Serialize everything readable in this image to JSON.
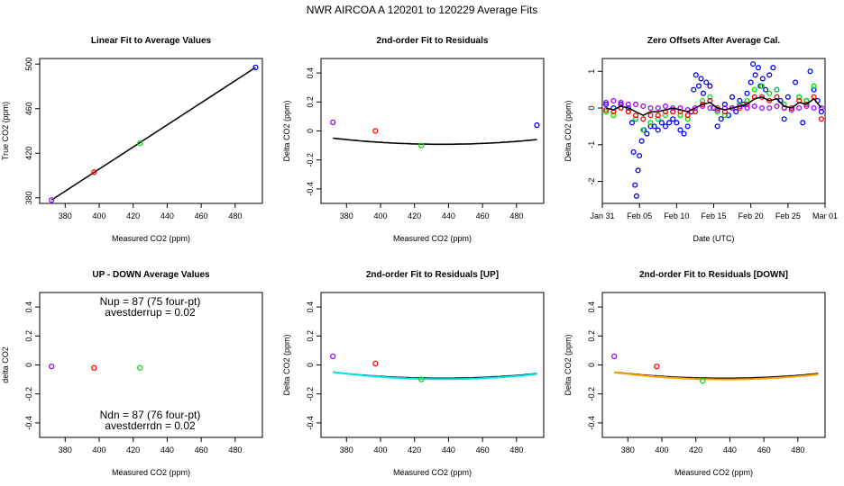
{
  "figure": {
    "title": "NWR   AIRCOA A   120201 to 120229   Average Fits",
    "colors": {
      "blue": "#0000ff",
      "red": "#ff0000",
      "green": "#00e000",
      "purple": "#a000ff",
      "black": "#000000",
      "cyan": "#00e5e5",
      "orange": "#ffa500"
    }
  },
  "chart_data": [
    {
      "id": "linear",
      "type": "scatter",
      "title": "Linear Fit to Average Values",
      "xlabel": "Measured CO2 (ppm)",
      "ylabel": "True CO2 (ppm)",
      "xlim": [
        365,
        496
      ],
      "ylim": [
        375,
        505
      ],
      "xticks": [
        380,
        400,
        420,
        440,
        460,
        480
      ],
      "yticks": [
        380,
        420,
        460,
        500
      ],
      "points": [
        {
          "x": 372,
          "y": 378,
          "color": "purple"
        },
        {
          "x": 397,
          "y": 403,
          "color": "red"
        },
        {
          "x": 424,
          "y": 429,
          "color": "green"
        },
        {
          "x": 492,
          "y": 497,
          "color": "blue"
        }
      ],
      "line": {
        "x": [
          372,
          492
        ],
        "y": [
          378,
          497
        ],
        "color": "black"
      }
    },
    {
      "id": "resid",
      "type": "scatter",
      "title": "2nd-order Fit to Residuals",
      "xlabel": "Measured CO2 (ppm)",
      "ylabel": "Delta CO2 (ppm)",
      "xlim": [
        365,
        496
      ],
      "ylim": [
        -0.5,
        0.5
      ],
      "xticks": [
        380,
        400,
        420,
        440,
        460,
        480
      ],
      "yticks": [
        -0.4,
        -0.2,
        0.0,
        0.2,
        0.4
      ],
      "points": [
        {
          "x": 372,
          "y": 0.06,
          "color": "purple"
        },
        {
          "x": 397,
          "y": 0.0,
          "color": "red"
        },
        {
          "x": 424,
          "y": -0.1,
          "color": "green"
        },
        {
          "x": 492,
          "y": 0.04,
          "color": "blue"
        }
      ],
      "curves": [
        {
          "color": "black",
          "a": 1.04e-05,
          "x0": 436,
          "c": -0.092,
          "from": 372,
          "to": 492
        }
      ]
    },
    {
      "id": "zero",
      "type": "scatter",
      "title": "Zero Offsets After Average Cal.",
      "xlabel": "Date (UTC)",
      "ylabel": "Delta CO2 (ppm)",
      "xlim": [
        0,
        30
      ],
      "ylim": [
        -2.6,
        1.35
      ],
      "xticks_values": [
        0,
        5,
        10,
        15,
        20,
        25,
        30
      ],
      "xticks": [
        "Jan 31",
        "Feb 05",
        "Feb 10",
        "Feb 15",
        "Feb 20",
        "Feb 25",
        "Mar 01"
      ],
      "yticks": [
        -2,
        -1,
        0,
        1
      ],
      "series": [
        {
          "name": "blue",
          "color": "blue",
          "x": [
            0.5,
            1.5,
            2.5,
            3.5,
            4.0,
            4.2,
            4.4,
            4.6,
            4.8,
            5.0,
            5.3,
            5.6,
            6.0,
            6.5,
            7.0,
            7.5,
            8.0,
            8.5,
            9.0,
            9.5,
            10.0,
            10.5,
            11.0,
            11.5,
            12.0,
            12.3,
            12.6,
            13.0,
            13.3,
            13.6,
            14.0,
            14.5,
            15.0,
            15.5,
            16.0,
            16.5,
            17.0,
            17.5,
            18.0,
            18.5,
            19.0,
            19.5,
            20.0,
            20.3,
            20.6,
            21.0,
            21.3,
            21.6,
            22.0,
            22.5,
            23.0,
            23.5,
            24.0,
            24.5,
            25.0,
            25.5,
            26.0,
            26.5,
            27.0,
            27.5,
            28.0,
            28.5,
            29.0,
            29.5
          ],
          "y": [
            0.1,
            0.0,
            0.1,
            0.0,
            -0.4,
            -1.2,
            -2.1,
            -2.4,
            -1.7,
            -1.3,
            -0.9,
            -0.6,
            -0.7,
            -0.5,
            -0.5,
            -0.6,
            -0.4,
            -0.5,
            -0.4,
            -0.3,
            -0.4,
            -0.6,
            -0.7,
            -0.5,
            -0.1,
            0.5,
            0.9,
            0.6,
            0.8,
            0.4,
            0.7,
            0.6,
            0.0,
            -0.5,
            -0.3,
            0.1,
            -0.2,
            0.3,
            -0.1,
            0.2,
            0.1,
            0.4,
            0.7,
            1.2,
            0.9,
            1.1,
            0.6,
            0.8,
            0.5,
            0.9,
            1.1,
            0.5,
            0.2,
            -0.3,
            0.3,
            0.0,
            0.7,
            0.3,
            -0.4,
            0.2,
            1.0,
            0.5,
            0.2,
            -0.1
          ]
        },
        {
          "name": "green",
          "color": "green",
          "x": [
            0.5,
            1.5,
            2.5,
            3.5,
            4.5,
            5.5,
            6.5,
            7.5,
            8.5,
            9.5,
            10.5,
            11.5,
            12.5,
            13.5,
            14.5,
            15.5,
            16.5,
            17.5,
            18.5,
            19.5,
            20.5,
            21.5,
            22.5,
            23.5,
            24.5,
            25.5,
            26.5,
            27.5,
            28.5,
            29.5
          ],
          "y": [
            -0.1,
            -0.2,
            0.0,
            -0.1,
            -0.3,
            -0.6,
            -0.4,
            -0.3,
            -0.2,
            -0.1,
            -0.2,
            -0.3,
            -0.1,
            0.2,
            0.3,
            -0.1,
            -0.2,
            0.0,
            0.1,
            0.2,
            0.5,
            0.6,
            0.4,
            0.5,
            0.1,
            0.0,
            0.3,
            0.2,
            0.6,
            0.0
          ]
        },
        {
          "name": "red",
          "color": "red",
          "x": [
            0.5,
            1.5,
            2.5,
            3.5,
            4.5,
            5.5,
            6.5,
            7.5,
            8.5,
            9.5,
            10.5,
            11.5,
            12.5,
            13.5,
            14.5,
            15.5,
            16.5,
            17.5,
            18.5,
            19.5,
            20.5,
            21.5,
            22.5,
            23.5,
            24.5,
            25.5,
            26.5,
            27.5,
            28.5,
            29.5
          ],
          "y": [
            -0.05,
            -0.1,
            0.0,
            -0.1,
            -0.2,
            -0.3,
            -0.2,
            -0.2,
            -0.1,
            -0.1,
            -0.1,
            -0.2,
            -0.1,
            0.1,
            0.2,
            0.0,
            -0.1,
            0.0,
            0.0,
            0.1,
            0.3,
            0.3,
            0.2,
            0.3,
            0.0,
            0.0,
            0.2,
            0.1,
            0.3,
            -0.3
          ]
        },
        {
          "name": "purple",
          "color": "purple",
          "x": [
            0.5,
            1.5,
            2.5,
            3.5,
            4.5,
            5.5,
            6.5,
            7.5,
            8.5,
            9.5,
            10.5,
            11.5,
            12.5,
            13.5,
            14.5,
            15.5,
            16.5,
            17.5,
            18.5,
            19.5,
            20.5,
            21.5,
            22.5,
            23.5,
            24.5,
            25.5,
            26.5,
            27.5,
            28.5,
            29.5
          ],
          "y": [
            0.15,
            0.2,
            0.15,
            0.1,
            0.1,
            0.05,
            0.0,
            0.0,
            0.05,
            0.0,
            0.0,
            -0.05,
            0.0,
            0.05,
            0.0,
            -0.05,
            0.0,
            0.0,
            0.05,
            0.0,
            0.05,
            0.0,
            0.0,
            0.05,
            0.0,
            -0.05,
            0.0,
            0.05,
            0.0,
            0.0
          ]
        },
        {
          "name": "black",
          "color": "black",
          "x": [
            0.5,
            1.5,
            2.5,
            3.5,
            4.5,
            5.5,
            6.5,
            7.5,
            8.5,
            9.5,
            10.5,
            11.5,
            12.5,
            13.5,
            14.5,
            15.5,
            16.5,
            17.5,
            18.5,
            19.5,
            20.5,
            21.5,
            22.5,
            23.5,
            24.5,
            25.5,
            26.5,
            27.5,
            28.5,
            29.5
          ],
          "y": [
            0.0,
            -0.05,
            0.05,
            0.0,
            -0.1,
            -0.2,
            -0.1,
            -0.1,
            -0.05,
            0.0,
            -0.05,
            -0.1,
            0.0,
            0.1,
            0.15,
            0.0,
            -0.05,
            0.0,
            0.05,
            0.1,
            0.25,
            0.3,
            0.2,
            0.25,
            0.05,
            0.0,
            0.15,
            0.1,
            0.25,
            0.0
          ]
        }
      ]
    },
    {
      "id": "updown",
      "type": "scatter",
      "title": "UP - DOWN Average Values",
      "xlabel": "Measured CO2 (ppm)",
      "ylabel": "delta CO2",
      "xlim": [
        365,
        496
      ],
      "ylim": [
        -0.5,
        0.5
      ],
      "xticks": [
        380,
        400,
        420,
        440,
        460,
        480
      ],
      "yticks": [
        -0.4,
        -0.2,
        0.0,
        0.2,
        0.4
      ],
      "points": [
        {
          "x": 372,
          "y": -0.01,
          "color": "purple"
        },
        {
          "x": 397,
          "y": -0.02,
          "color": "red"
        },
        {
          "x": 424,
          "y": -0.02,
          "color": "green"
        }
      ],
      "annotations": {
        "nup": "Nup = 87 (75 four-pt)",
        "avestderrup": "avestderrup =  0.02",
        "ndn": "Ndn = 87 (76 four-pt)",
        "avestderrdn": "avestderrdn =  0.02"
      }
    },
    {
      "id": "resid_up",
      "type": "scatter",
      "title": "2nd-order Fit to Residuals [UP]",
      "xlabel": "Measured CO2 (ppm)",
      "ylabel": "Delta CO2 (ppm)",
      "xlim": [
        365,
        496
      ],
      "ylim": [
        -0.5,
        0.5
      ],
      "xticks": [
        380,
        400,
        420,
        440,
        460,
        480
      ],
      "yticks": [
        -0.4,
        -0.2,
        0.0,
        0.2,
        0.4
      ],
      "points": [
        {
          "x": 372,
          "y": 0.06,
          "color": "purple"
        },
        {
          "x": 397,
          "y": 0.01,
          "color": "red"
        },
        {
          "x": 424,
          "y": -0.1,
          "color": "green"
        }
      ],
      "curves": [
        {
          "color": "black",
          "a": 1.04e-05,
          "x0": 436,
          "c": -0.092,
          "from": 372,
          "to": 492
        },
        {
          "color": "cyan",
          "a": 1.16e-05,
          "x0": 437,
          "c": -0.098,
          "from": 372,
          "to": 492
        }
      ]
    },
    {
      "id": "resid_down",
      "type": "scatter",
      "title": "2nd-order Fit to Residuals [DOWN]",
      "xlabel": "Measured CO2 (ppm)",
      "ylabel": "Delta CO2 (ppm)",
      "xlim": [
        365,
        496
      ],
      "ylim": [
        -0.5,
        0.5
      ],
      "xticks": [
        380,
        400,
        420,
        440,
        460,
        480
      ],
      "yticks": [
        -0.4,
        -0.2,
        0.0,
        0.2,
        0.4
      ],
      "points": [
        {
          "x": 372,
          "y": 0.06,
          "color": "purple"
        },
        {
          "x": 397,
          "y": -0.01,
          "color": "red"
        },
        {
          "x": 424,
          "y": -0.11,
          "color": "green"
        }
      ],
      "curves": [
        {
          "color": "black",
          "a": 1.04e-05,
          "x0": 436,
          "c": -0.092,
          "from": 372,
          "to": 492
        },
        {
          "color": "orange",
          "a": 1.16e-05,
          "x0": 437,
          "c": -0.1,
          "from": 372,
          "to": 492
        }
      ]
    }
  ]
}
